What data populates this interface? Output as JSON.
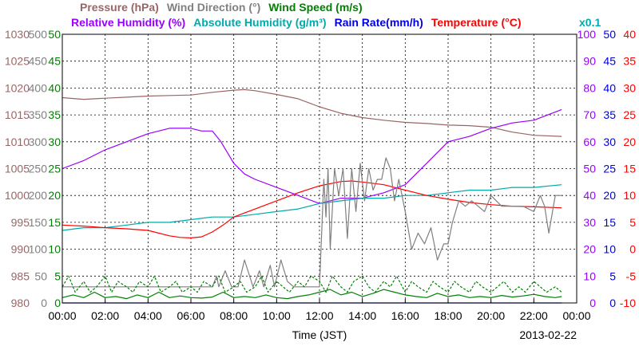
{
  "chart_data": {
    "type": "line",
    "xlabel": "Time (JST)",
    "date": "2013-02-22",
    "x_ticks": [
      "00:00",
      "02:00",
      "04:00",
      "06:00",
      "08:00",
      "10:00",
      "12:00",
      "14:00",
      "16:00",
      "18:00",
      "20:00",
      "22:00",
      "00:00"
    ],
    "grid": true,
    "headers": {
      "row1": [
        {
          "key": "pressure",
          "label": "Pressure (hPa)",
          "color": "#996666"
        },
        {
          "key": "wind_dir",
          "label": "Wind Direction (°)",
          "color": "#808080"
        },
        {
          "key": "wind_speed",
          "label": "Wind Speed (m/s)",
          "color": "#008000"
        }
      ],
      "row2": [
        {
          "key": "rh",
          "label": "Relative Humidity (%)",
          "color": "#9900ff"
        },
        {
          "key": "ah",
          "label": "Absolute Humidity (g/m³)",
          "color": "#00aaaa"
        },
        {
          "key": "rain",
          "label": "Rain Rate(mm/h)",
          "color": "#0000dd"
        },
        {
          "key": "temp",
          "label": "Temperature (°C)",
          "color": "#ff0000"
        }
      ],
      "ah_scale_note": "x0.1"
    },
    "axes": {
      "pressure": {
        "color": "#996666",
        "min": 980,
        "max": 1030,
        "ticks": [
          "980",
          "985",
          "990",
          "995",
          "1000",
          "1005",
          "1010",
          "1015",
          "1020",
          "1025",
          "1030"
        ]
      },
      "wind_dir": {
        "color": "#808080",
        "min": 0,
        "max": 500,
        "ticks": [
          "0",
          "50",
          "100",
          "150",
          "200",
          "250",
          "300",
          "350",
          "400",
          "450",
          "500"
        ]
      },
      "wind_speed": {
        "color": "#008000",
        "min": 0,
        "max": 50,
        "ticks": [
          "0",
          "5",
          "10",
          "15",
          "20",
          "25",
          "30",
          "35",
          "40",
          "45",
          "50"
        ]
      },
      "rh": {
        "color": "#9900ff",
        "min": 0,
        "max": 100,
        "ticks": [
          "0",
          "10",
          "20",
          "30",
          "40",
          "50",
          "60",
          "70",
          "80",
          "90",
          "100"
        ]
      },
      "rain": {
        "color": "#0000dd",
        "min": 0,
        "max": 50,
        "ticks": [
          "0",
          "5",
          "10",
          "15",
          "20",
          "25",
          "30",
          "35",
          "40",
          "45",
          "50"
        ]
      },
      "temp": {
        "color": "#ff0000",
        "min": -10,
        "max": 40,
        "ticks": [
          "-10",
          "-5",
          "0",
          "5",
          "10",
          "15",
          "20",
          "25",
          "30",
          "35",
          "40"
        ]
      }
    },
    "series": [
      {
        "key": "pressure",
        "color": "#996666",
        "axis": "pressure",
        "x": [
          0,
          1,
          2,
          3,
          4,
          5,
          6,
          7,
          8,
          8.5,
          9,
          10,
          11,
          12,
          13,
          14,
          15,
          16,
          17,
          18,
          19,
          20,
          21,
          22,
          23.3
        ],
        "y": [
          1018.2,
          1017.9,
          1018.1,
          1018.3,
          1018.5,
          1018.6,
          1018.7,
          1019.2,
          1019.6,
          1019.7,
          1019.5,
          1018.8,
          1018.0,
          1016.5,
          1015.3,
          1014.5,
          1014.0,
          1013.6,
          1013.4,
          1013.1,
          1013.0,
          1012.7,
          1011.8,
          1011.2,
          1011.0
        ]
      },
      {
        "key": "rh",
        "color": "#9900ff",
        "axis": "rh",
        "x": [
          0,
          1,
          2,
          3,
          4,
          5,
          6,
          6.5,
          7,
          7.4,
          8,
          8.5,
          9,
          10,
          11,
          12,
          12.5,
          13,
          14,
          15,
          16,
          17,
          18,
          19,
          20,
          21,
          22,
          23.3
        ],
        "y": [
          50,
          53,
          57,
          60,
          63,
          65,
          65,
          64,
          64,
          60,
          52,
          48,
          46,
          43,
          40,
          37,
          38,
          39,
          39,
          41,
          44,
          52,
          60,
          62,
          65,
          67,
          68,
          72
        ]
      },
      {
        "key": "ah",
        "color": "#00aaaa",
        "axis": "rh",
        "x": [
          0,
          1,
          2,
          3,
          4,
          5,
          6,
          7,
          8,
          9,
          10,
          11,
          12,
          13,
          14,
          15,
          16,
          17,
          18,
          19,
          20,
          21,
          22,
          23.3
        ],
        "y": [
          27,
          28,
          28,
          29,
          30,
          30,
          31,
          32,
          32,
          33,
          34,
          35,
          37,
          38,
          39,
          39,
          40,
          40,
          41,
          42,
          42,
          43,
          43,
          44
        ]
      },
      {
        "key": "temp",
        "color": "#ff0000",
        "axis": "temp",
        "x": [
          0,
          1,
          2,
          3,
          4,
          5,
          5.5,
          6,
          6.5,
          7,
          7.5,
          8,
          9,
          10,
          11,
          12,
          13,
          13.5,
          14,
          15,
          16,
          17,
          18,
          19,
          20,
          21,
          22,
          23.3
        ],
        "y": [
          4.5,
          4.3,
          4.0,
          3.8,
          3.5,
          2.5,
          2.2,
          2.1,
          2.3,
          3.2,
          4.5,
          6.0,
          7.5,
          9.0,
          10.5,
          11.8,
          12.6,
          12.7,
          12.5,
          12.0,
          11.0,
          10.0,
          9.3,
          8.7,
          8.3,
          8.0,
          7.9,
          7.7
        ]
      },
      {
        "key": "wind_dir",
        "color": "#808080",
        "axis": "wind_dir",
        "x": [
          0,
          0.5,
          1,
          2,
          3,
          4,
          5,
          6,
          7,
          7.2,
          7.3,
          7.6,
          7.9,
          8.2,
          8.5,
          8.9,
          9.2,
          9.4,
          9.7,
          9.9,
          10.2,
          10.5,
          10.8,
          11,
          11.2,
          11.5,
          11.8,
          12,
          12.2,
          12.3,
          12.4,
          12.5,
          12.7,
          12.9,
          13.1,
          13.3,
          13.5,
          13.7,
          13.9,
          14.1,
          14.3,
          14.5,
          14.7,
          14.9,
          15.1,
          15.3,
          15.5,
          15.7,
          16,
          16.3,
          16.6,
          16.9,
          17.2,
          17.5,
          17.8,
          18,
          18.2,
          18.5,
          18.8,
          19.1,
          19.4,
          19.7,
          20,
          20.5,
          21,
          21.5,
          22,
          22.3,
          22.5,
          22.7,
          23,
          23.3
        ],
        "y": [
          30,
          30,
          30,
          30,
          30,
          30,
          30,
          30,
          30,
          50,
          30,
          60,
          30,
          30,
          80,
          30,
          60,
          30,
          70,
          30,
          80,
          40,
          30,
          30,
          30,
          30,
          30,
          30,
          230,
          160,
          250,
          100,
          250,
          200,
          250,
          120,
          250,
          170,
          260,
          190,
          250,
          210,
          230,
          230,
          270,
          250,
          190,
          230,
          170,
          100,
          130,
          110,
          140,
          80,
          110,
          110,
          150,
          190,
          180,
          190,
          180,
          170,
          200,
          180,
          180,
          180,
          170,
          200,
          180,
          130,
          200,
          200
        ]
      },
      {
        "key": "wind_speed",
        "color": "#008000",
        "axis": "wind_speed",
        "x": [
          0,
          0.5,
          1,
          1.5,
          2,
          2.5,
          3,
          3.5,
          4,
          4.5,
          5,
          5.5,
          6,
          6.5,
          7,
          7.5,
          8,
          8.5,
          9,
          9.5,
          10,
          10.5,
          11,
          11.5,
          12,
          12.5,
          13,
          13.5,
          14,
          14.5,
          15,
          15.5,
          16,
          16.5,
          17,
          17.5,
          18,
          18.5,
          19,
          19.5,
          20,
          20.5,
          21,
          21.5,
          22,
          22.5,
          23,
          23.3
        ],
        "y": [
          1,
          1.5,
          1,
          2,
          1,
          1.2,
          0.8,
          1.5,
          1,
          2,
          1,
          1.3,
          1,
          0.9,
          1.1,
          2,
          1,
          1.2,
          1,
          1.5,
          1,
          0.8,
          1.2,
          1.5,
          2,
          2.5,
          1.5,
          2,
          1.2,
          1.8,
          2.5,
          2,
          1.5,
          1.2,
          1,
          1.8,
          1.2,
          1.5,
          1,
          1.2,
          1,
          1.4,
          1.1,
          1.3,
          1.6,
          1.2,
          1,
          1.2
        ]
      },
      {
        "key": "wind_gust",
        "color": "#008000",
        "axis": "wind_speed",
        "dash": true,
        "x": [
          0,
          0.3,
          0.6,
          1,
          1.3,
          1.6,
          2,
          2.3,
          2.6,
          3,
          3.3,
          3.6,
          4,
          4.3,
          4.6,
          5,
          5.3,
          5.6,
          6,
          6.3,
          6.6,
          7,
          7.3,
          7.6,
          8,
          8.3,
          8.6,
          9,
          9.3,
          9.6,
          10,
          10.3,
          10.6,
          11,
          11.3,
          11.6,
          12,
          12.3,
          12.6,
          13,
          13.3,
          13.6,
          14,
          14.3,
          14.6,
          15,
          15.3,
          15.6,
          16,
          16.3,
          16.6,
          17,
          17.3,
          17.6,
          18,
          18.3,
          18.6,
          19,
          19.3,
          19.6,
          20,
          20.3,
          20.6,
          21,
          21.3,
          21.6,
          22,
          22.3,
          22.6,
          23,
          23.3
        ],
        "y": [
          3,
          5,
          2,
          4,
          2,
          3,
          5,
          2,
          4,
          3,
          2,
          4,
          3,
          5,
          2,
          3,
          4,
          2,
          3,
          2,
          4,
          3,
          5,
          2,
          3,
          4,
          2,
          3,
          5,
          2,
          4,
          3,
          2,
          4,
          3,
          5,
          4,
          2,
          5,
          3,
          2,
          4,
          5,
          3,
          2,
          4,
          3,
          5,
          2,
          4,
          3,
          2,
          4,
          3,
          2,
          4,
          3,
          2,
          4,
          3,
          2,
          3,
          4,
          2,
          3,
          2,
          4,
          3,
          2,
          3,
          2
        ]
      },
      {
        "key": "rain",
        "color": "#0000dd",
        "axis": "rain",
        "x": [
          0,
          23.3
        ],
        "y": [
          0,
          0
        ]
      }
    ]
  }
}
